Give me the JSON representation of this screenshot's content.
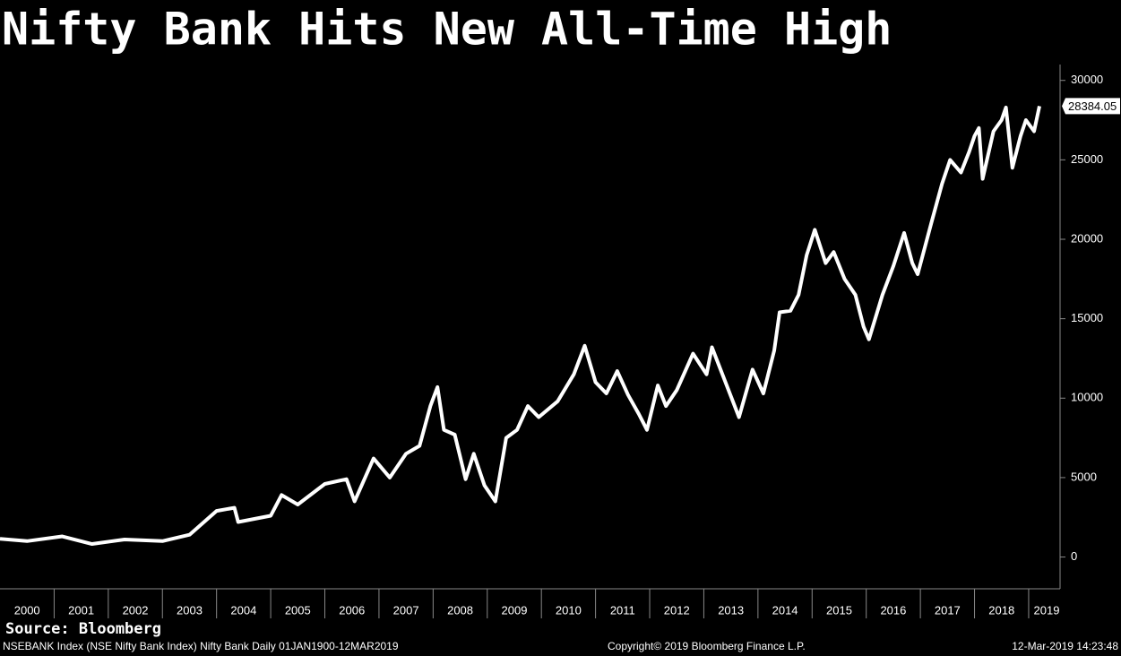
{
  "chart_data": {
    "type": "line",
    "title": "Nifty Bank Hits New All-Time High",
    "x": [
      2000.0,
      2000.5,
      2001.15,
      2001.7,
      2002.3,
      2003.0,
      2003.5,
      2004.0,
      2004.33,
      2004.4,
      2005.0,
      2005.2,
      2005.5,
      2006.0,
      2006.4,
      2006.55,
      2006.9,
      2007.2,
      2007.5,
      2007.75,
      2007.95,
      2008.08,
      2008.2,
      2008.4,
      2008.6,
      2008.75,
      2008.95,
      2009.15,
      2009.35,
      2009.55,
      2009.75,
      2009.95,
      2010.3,
      2010.6,
      2010.8,
      2011.0,
      2011.2,
      2011.4,
      2011.6,
      2011.8,
      2011.95,
      2012.15,
      2012.3,
      2012.5,
      2012.8,
      2013.05,
      2013.15,
      2013.4,
      2013.65,
      2013.9,
      2014.1,
      2014.3,
      2014.4,
      2014.6,
      2014.75,
      2014.9,
      2015.05,
      2015.25,
      2015.4,
      2015.6,
      2015.8,
      2015.95,
      2016.05,
      2016.3,
      2016.5,
      2016.7,
      2016.85,
      2016.95,
      2017.2,
      2017.4,
      2017.55,
      2017.75,
      2017.9,
      2018.0,
      2018.08,
      2018.15,
      2018.35,
      2018.5,
      2018.58,
      2018.7,
      2018.85,
      2018.95,
      2019.1,
      2019.2
    ],
    "series": [
      {
        "name": "Nifty Bank",
        "color": "#ffffff",
        "values": [
          1150,
          1000,
          1300,
          820,
          1100,
          1000,
          1400,
          2900,
          3100,
          2200,
          2600,
          3900,
          3300,
          4600,
          4900,
          3500,
          6200,
          5000,
          6500,
          7000,
          9500,
          10700,
          8000,
          7700,
          4900,
          6500,
          4500,
          3500,
          7500,
          8000,
          9500,
          8800,
          9800,
          11500,
          13300,
          11000,
          10300,
          11700,
          10200,
          9000,
          8000,
          10800,
          9500,
          10500,
          12800,
          11500,
          13200,
          11000,
          8800,
          11800,
          10300,
          13000,
          15400,
          15500,
          16500,
          19000,
          20600,
          18500,
          19200,
          17500,
          16500,
          14500,
          13700,
          16500,
          18300,
          20400,
          18500,
          17800,
          21000,
          23500,
          25000,
          24200,
          25500,
          26500,
          27000,
          23800,
          26800,
          27500,
          28300,
          24500,
          26500,
          27500,
          26800,
          28384.05
        ]
      }
    ],
    "last_value": 28384.05,
    "xlim": [
      2000,
      2019.58
    ],
    "xticks": [
      2000,
      2001,
      2002,
      2003,
      2004,
      2005,
      2006,
      2007,
      2008,
      2009,
      2010,
      2011,
      2012,
      2013,
      2014,
      2015,
      2016,
      2017,
      2018,
      2019
    ],
    "ylim": [
      -2000,
      31000
    ],
    "yticks": [
      0,
      5000,
      10000,
      15000,
      20000,
      25000,
      30000
    ]
  },
  "source": "Source: Bloomberg",
  "footer": {
    "left": "NSEBANK Index (NSE Nifty Bank Index) Nifty Bank  Daily 01JAN1900-12MAR2019",
    "center": "Copyright© 2019 Bloomberg Finance L.P.",
    "right": "12-Mar-2019 14:23:48"
  }
}
